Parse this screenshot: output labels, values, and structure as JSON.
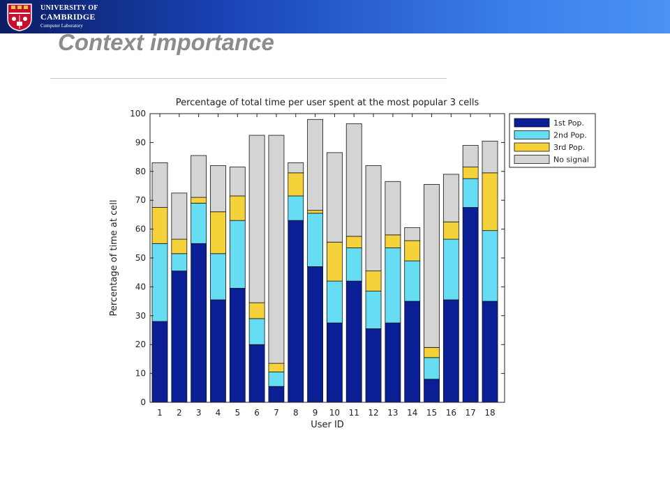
{
  "slide": {
    "title": "Context importance",
    "logo": {
      "line1": "UNIVERSITY OF",
      "line2": "CAMBRIDGE",
      "line3": "Computer Laboratory"
    }
  },
  "colors": {
    "first": "#0a1f96",
    "second": "#66ddf2",
    "third": "#f6d23a",
    "nosignal": "#d4d4d4",
    "header_dark": "#0b1d63",
    "header_light": "#4b92f4",
    "crest_red": "#c8102e"
  },
  "chart_data": {
    "type": "bar",
    "stacked": true,
    "title": "Percentage of total time per user spent at the most popular 3 cells",
    "xlabel": "User ID",
    "ylabel": "Percentage of time at cell",
    "ylim": [
      0,
      100
    ],
    "yticks": [
      0,
      10,
      20,
      30,
      40,
      50,
      60,
      70,
      80,
      90,
      100
    ],
    "categories": [
      "1",
      "2",
      "3",
      "4",
      "5",
      "6",
      "7",
      "8",
      "9",
      "10",
      "11",
      "12",
      "13",
      "14",
      "15",
      "16",
      "17",
      "18"
    ],
    "legend_position": "outside-right-top",
    "series": [
      {
        "name": "1st Pop.",
        "color": "#0a1f96",
        "values": [
          28,
          45.5,
          55,
          35.5,
          39.5,
          20,
          5.5,
          63,
          47,
          27.5,
          42,
          25.5,
          27.5,
          35,
          8,
          35.5,
          67.5,
          35
        ]
      },
      {
        "name": "2nd Pop.",
        "color": "#66ddf2",
        "values": [
          27,
          6,
          14,
          16,
          23.5,
          9,
          5,
          8.5,
          18.5,
          14.5,
          11.5,
          13,
          26,
          14,
          7.5,
          21,
          10,
          24.5
        ]
      },
      {
        "name": "3rd Pop.",
        "color": "#f6d23a",
        "values": [
          12.5,
          5,
          2,
          14.5,
          8.5,
          5.5,
          3,
          8,
          1,
          13.5,
          4,
          7,
          4.5,
          7,
          3.5,
          6,
          4,
          20
        ]
      },
      {
        "name": "No signal",
        "color": "#d4d4d4",
        "values": [
          15.5,
          16,
          14.5,
          16,
          10,
          58,
          79,
          3.5,
          31.5,
          31,
          39,
          36.5,
          18.5,
          4.5,
          56.5,
          16.5,
          7.5,
          11
        ]
      }
    ]
  }
}
